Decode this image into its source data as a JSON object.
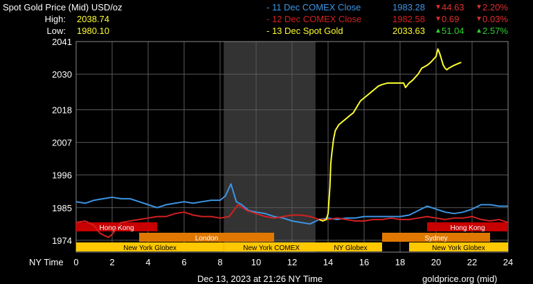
{
  "header": {
    "title": "Spot Gold Price (Mid) USD/oz",
    "high_label": "High:",
    "high_value": "2038.74",
    "low_label": "Low:",
    "low_value": "1980.10",
    "rows": [
      {
        "label": "- 11 Dec COMEX Close",
        "price": "1983.28",
        "change": "44.63",
        "pct": "2.20%",
        "dir": "down",
        "color": "#3c96e6"
      },
      {
        "label": "- 12 Dec COMEX Close",
        "price": "1982.58",
        "change": "0.69",
        "pct": "0.03%",
        "dir": "down",
        "color": "#d42020"
      },
      {
        "label": "- 13 Dec Spot Gold",
        "price": "2033.63",
        "change": "51.04",
        "pct": "2.57%",
        "dir": "up",
        "color": "#ffff30"
      }
    ]
  },
  "footer": {
    "timestamp": "Dec 13, 2023 at 21:26 NY Time",
    "source": "goldprice.org (mid)",
    "x_axis_label": "NY Time"
  },
  "colors": {
    "blue": "#3c96e6",
    "red": "#d42020",
    "yellow": "#ffff30",
    "down": "#e03030",
    "up": "#30d030",
    "sessionRed": "#c80000",
    "sessionOrange": "#e07800",
    "sessionYellow": "#ffc800"
  },
  "chart_data": {
    "type": "line",
    "xlim": [
      0,
      24
    ],
    "ylim": [
      1970,
      2041
    ],
    "x_ticks": [
      0,
      2,
      4,
      6,
      8,
      10,
      12,
      14,
      16,
      18,
      20,
      22,
      24
    ],
    "y_ticks": [
      1974,
      1985,
      1996,
      2007,
      2018,
      2030,
      2041
    ],
    "shaded_hours": [
      8.2,
      13.3
    ],
    "sessions": [
      {
        "name": "Hong Kong",
        "row": 0,
        "start": 0,
        "end": 4.5,
        "color": "sessionRed"
      },
      {
        "name": "Hong Kong",
        "row": 0,
        "start": 19.5,
        "end": 24,
        "color": "sessionRed"
      },
      {
        "name": "London",
        "row": 1,
        "start": 3.5,
        "end": 11,
        "color": "sessionOrange"
      },
      {
        "name": "Sydney",
        "row": 1,
        "start": 17,
        "end": 23,
        "color": "sessionOrange"
      },
      {
        "name": "New York Globex",
        "row": 2,
        "start": 0,
        "end": 8.2,
        "color": "sessionYellow"
      },
      {
        "name": "New York COMEX",
        "row": 2,
        "start": 8.2,
        "end": 13.5,
        "color": "sessionYellow"
      },
      {
        "name": "NY Globex",
        "row": 2,
        "start": 13.5,
        "end": 17,
        "color": "sessionYellow"
      },
      {
        "name": "New York Globex",
        "row": 2,
        "start": 18.5,
        "end": 24,
        "color": "sessionYellow"
      }
    ],
    "series": [
      {
        "name": "11 Dec COMEX Close",
        "color": "blue",
        "x": [
          0,
          0.5,
          1,
          1.5,
          2,
          2.5,
          3,
          3.5,
          4,
          4.5,
          5,
          5.5,
          6,
          6.5,
          7,
          7.5,
          8,
          8.3,
          8.6,
          8.9,
          9.2,
          9.6,
          10,
          10.5,
          11,
          11.5,
          12,
          12.5,
          13,
          13.5,
          14,
          14.5,
          15,
          15.5,
          16,
          16.5,
          17,
          17.5,
          18,
          18.5,
          19,
          19.5,
          20,
          20.5,
          21,
          21.5,
          22,
          22.5,
          23,
          23.5,
          24
        ],
        "y": [
          1987,
          1986.5,
          1987.5,
          1988,
          1988.5,
          1988,
          1988,
          1987,
          1986,
          1985,
          1986,
          1986.5,
          1987,
          1986.5,
          1987,
          1987.5,
          1987.5,
          1989,
          1993,
          1987,
          1986,
          1984,
          1983.5,
          1983,
          1982,
          1981.5,
          1980.5,
          1980,
          1979.5,
          1981,
          1981.5,
          1981,
          1981.5,
          1981.5,
          1982,
          1982,
          1982,
          1982,
          1982,
          1982.5,
          1984,
          1985.5,
          1984.5,
          1983.5,
          1983,
          1983.5,
          1984.5,
          1986,
          1986,
          1985.5,
          1985.5
        ]
      },
      {
        "name": "12 Dec COMEX Close",
        "color": "red",
        "x": [
          0,
          0.5,
          1,
          1.3,
          1.6,
          1.8,
          2,
          2.5,
          3,
          3.5,
          4,
          4.5,
          5,
          5.5,
          6,
          6.5,
          7,
          7.5,
          8,
          8.5,
          9,
          9.5,
          10,
          10.5,
          11,
          11.5,
          12,
          12.5,
          13,
          13.5,
          14,
          14.5,
          15,
          15.5,
          16,
          16.5,
          17,
          17.5,
          18,
          18.5,
          19,
          19.5,
          20,
          20.5,
          21,
          21.5,
          22,
          22.5,
          23,
          23.5,
          24
        ],
        "y": [
          1980,
          1980.5,
          1979,
          1976.5,
          1975.5,
          1975,
          1976,
          1980,
          1980.5,
          1981,
          1981.5,
          1982,
          1982,
          1983,
          1983.5,
          1982.5,
          1982,
          1982,
          1981.5,
          1982,
          1986,
          1984,
          1983,
          1982,
          1981.5,
          1982,
          1982.5,
          1982.5,
          1982,
          1981,
          1981,
          1981.5,
          1981,
          1980.5,
          1980.5,
          1981,
          1981,
          1981.5,
          1981,
          1981,
          1981.5,
          1982,
          1981.5,
          1981,
          1981.5,
          1981.5,
          1982,
          1981,
          1980.5,
          1981,
          1980
        ]
      },
      {
        "name": "13 Dec Spot Gold",
        "color": "yellow",
        "x": [
          13.5,
          13.7,
          13.9,
          14.0,
          14.1,
          14.15,
          14.2,
          14.3,
          14.4,
          14.5,
          14.6,
          14.8,
          15,
          15.2,
          15.4,
          15.6,
          15.8,
          16,
          16.2,
          16.4,
          16.6,
          16.8,
          17,
          17.3,
          17.6,
          18,
          18.2,
          18.3,
          18.5,
          18.7,
          19,
          19.2,
          19.5,
          19.7,
          20,
          20.1,
          20.2,
          20.3,
          20.4,
          20.5,
          20.6,
          20.7,
          21,
          21.2,
          21.4
        ],
        "y": [
          1981,
          1980.5,
          1981,
          1983,
          1992,
          2000,
          2003,
          2008,
          2011,
          2012,
          2013,
          2014,
          2015,
          2016,
          2017,
          2019,
          2021,
          2022,
          2023,
          2024,
          2025,
          2026,
          2026.5,
          2027,
          2027,
          2027,
          2027,
          2025.5,
          2027,
          2028,
          2030,
          2032,
          2033,
          2034,
          2036,
          2038.5,
          2037,
          2035,
          2033,
          2032,
          2031.5,
          2032,
          2033,
          2033.5,
          2034
        ]
      }
    ]
  }
}
